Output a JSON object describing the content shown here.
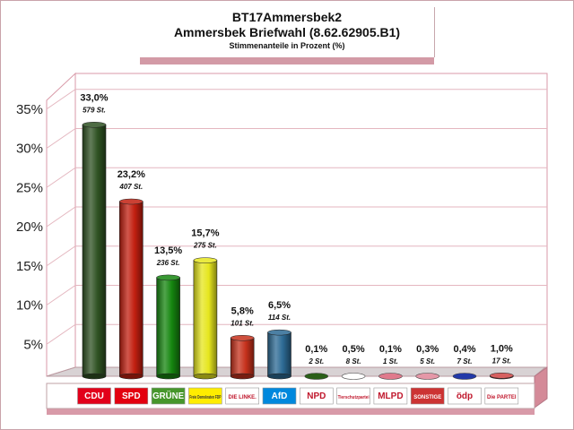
{
  "header": {
    "title": "BT17Ammersbek2",
    "subtitle": "Ammersbek Briefwahl (8.62.62905.B1)",
    "caption": "Stimmenanteile in Prozent (%)"
  },
  "chart_data": {
    "type": "bar",
    "title": "BT17Ammersbek2",
    "subtitle": "Ammersbek Briefwahl (8.62.62905.B1)",
    "ylabel": "Stimmenanteile in Prozent (%)",
    "ylim": [
      0,
      38
    ],
    "yticks": [
      "5%",
      "10%",
      "15%",
      "20%",
      "25%",
      "30%",
      "35%"
    ],
    "ytick_values": [
      5,
      10,
      15,
      20,
      25,
      30,
      35
    ],
    "grid": true,
    "categories": [
      "CDU",
      "SPD",
      "GRÜNE",
      "FDP",
      "DIE LINKE",
      "AfD",
      "NPD",
      "Tierschutzpartei",
      "MLPD",
      "SONSTIGE",
      "ödp",
      "Die PARTEI"
    ],
    "values": [
      33.0,
      23.2,
      13.5,
      15.7,
      5.8,
      6.5,
      0.1,
      0.5,
      0.1,
      0.3,
      0.4,
      1.0
    ],
    "value_labels": [
      "33,0%",
      "23,2%",
      "13,5%",
      "15,7%",
      "5,8%",
      "6,5%",
      "0,1%",
      "0,5%",
      "0,1%",
      "0,3%",
      "0,4%",
      "1,0%"
    ],
    "vote_labels": [
      "579 St.",
      "407 St.",
      "236 St.",
      "275 St.",
      "101 St.",
      "114 St.",
      "2 St.",
      "8 St.",
      "1 St.",
      "5 St.",
      "7 St.",
      "17 St."
    ],
    "colors": [
      "#2f5223",
      "#c21f10",
      "#15860f",
      "#e6e61e",
      "#c6311c",
      "#2c6a94",
      "#2a5f18",
      "#ffffff",
      "#e07a8c",
      "#e598a8",
      "#2238a8",
      "#d04444"
    ],
    "logo_labels": [
      "CDU",
      "SPD",
      "GRÜNE",
      "Freie Demokraten FDP",
      "DIE LINKE.",
      "AfD",
      "NPD",
      "Tierschutzpartei",
      "MLPD",
      "SONSTIGE",
      "ödp",
      "Die PARTEI"
    ],
    "logo_colors": [
      "#e2001a",
      "#e3000f",
      "#46962b",
      "#ffed00",
      "#ffffff",
      "#0088dd",
      "#ffffff",
      "#ffffff",
      "#ffffff",
      "#cc3333",
      "#ffffff",
      "#ffffff"
    ]
  }
}
